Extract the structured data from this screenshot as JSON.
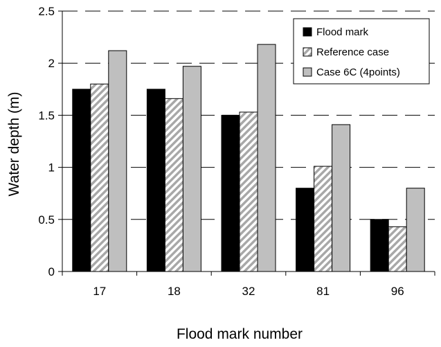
{
  "chart_data": {
    "type": "bar",
    "categories": [
      "17",
      "18",
      "32",
      "81",
      "96"
    ],
    "series": [
      {
        "name": "Flood mark",
        "values": [
          1.75,
          1.75,
          1.5,
          0.8,
          0.5
        ],
        "color": "#000000",
        "pattern": "solid"
      },
      {
        "name": "Reference case",
        "values": [
          1.8,
          1.66,
          1.53,
          1.01,
          0.43
        ],
        "color": "#b0b0b0",
        "pattern": "hatched"
      },
      {
        "name": "Case 6C (4points)",
        "values": [
          2.12,
          1.97,
          2.18,
          1.41,
          0.8
        ],
        "color": "#bfbfbf",
        "pattern": "solid"
      }
    ],
    "xlabel": "Flood mark number",
    "ylabel": "Water depth (m)",
    "ylim": [
      0,
      2.5
    ],
    "yticks": [
      "0",
      "0.5",
      "1",
      "1.5",
      "2",
      "2.5"
    ],
    "grid": "horizontal-dashed",
    "legend_position": "top-right"
  }
}
